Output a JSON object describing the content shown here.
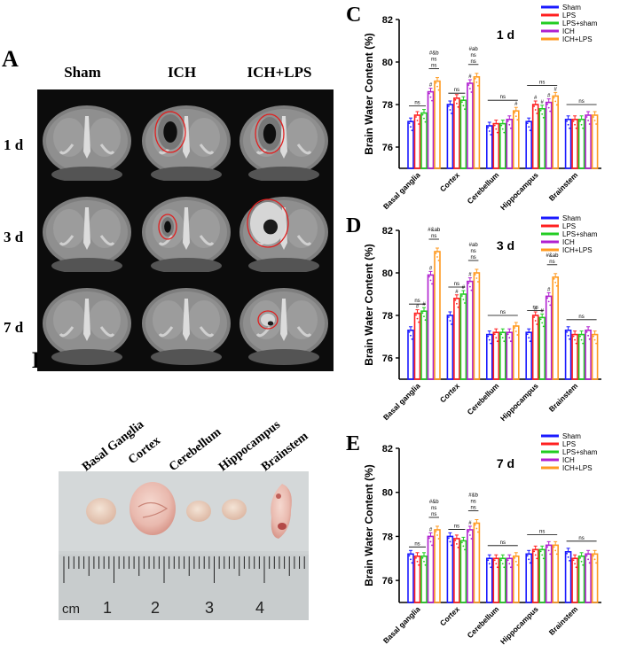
{
  "figure": {
    "panel_letters": [
      "A",
      "B",
      "C",
      "D",
      "E"
    ],
    "mri": {
      "columns": [
        "Sham",
        "ICH",
        "ICH+LPS"
      ],
      "rows": [
        "1 d",
        "3 d",
        "7 d"
      ]
    },
    "tissue": {
      "labels": [
        "Basal Ganglia",
        "Cortex",
        "Cerebellum",
        "Hippocampus",
        "Brainstem"
      ],
      "ruler_numbers": [
        "1",
        "2",
        "3",
        "4"
      ],
      "ruler_unit": "cm"
    }
  },
  "colors": {
    "Sham": "#1a1aff",
    "LPS": "#ff2020",
    "LPS+sham": "#22cc22",
    "ICH": "#b020d0",
    "ICH+LPS": "#ff9a20"
  },
  "chart_data": [
    {
      "type": "bar",
      "panel": "C",
      "title": "1 d",
      "ylabel": "Brain Water Content (%)",
      "ylim": [
        75,
        82
      ],
      "yticks": [
        76,
        78,
        80,
        82
      ],
      "categories": [
        "Basal ganglia",
        "Cortex",
        "Cerebellum",
        "Hippocampus",
        "Brainstem"
      ],
      "series": [
        {
          "name": "Sham",
          "values": [
            77.2,
            78.0,
            77.0,
            77.2,
            77.3
          ]
        },
        {
          "name": "LPS",
          "values": [
            77.5,
            78.3,
            77.1,
            78.0,
            77.3
          ]
        },
        {
          "name": "LPS+sham",
          "values": [
            77.6,
            78.2,
            77.1,
            77.8,
            77.3
          ]
        },
        {
          "name": "ICH",
          "values": [
            78.6,
            79.0,
            77.3,
            78.1,
            77.5
          ]
        },
        {
          "name": "ICH+LPS",
          "values": [
            79.1,
            79.3,
            77.7,
            78.4,
            77.5
          ]
        }
      ],
      "annotations": [
        {
          "category": 0,
          "series": [
            3,
            4
          ],
          "texts": [
            "ns",
            "#&b"
          ],
          "marks": [
            "",
            "",
            "",
            "#",
            ""
          ],
          "bracket_label": "ns"
        },
        {
          "category": 1,
          "series": [
            3,
            4
          ],
          "texts": [
            "ns",
            "#ab"
          ],
          "marks": [
            "",
            "",
            "",
            "#",
            ""
          ],
          "bracket_label": "ns"
        },
        {
          "category": 2,
          "series": [
            0,
            4
          ],
          "texts": [],
          "marks": [
            "",
            "",
            "",
            "",
            "#"
          ],
          "bracket_label": "ns"
        },
        {
          "category": 3,
          "series": [
            0,
            4
          ],
          "texts": [],
          "marks": [
            "",
            "#",
            "#",
            "#",
            "#"
          ],
          "bracket_label": "ns"
        },
        {
          "category": 4,
          "series": [
            0,
            4
          ],
          "texts": [],
          "marks": [
            "",
            "",
            "",
            "",
            ""
          ],
          "bracket_label": "ns"
        }
      ]
    },
    {
      "type": "bar",
      "panel": "D",
      "title": "3 d",
      "ylabel": "Brain Water Content (%)",
      "ylim": [
        75,
        82
      ],
      "yticks": [
        76,
        78,
        80,
        82
      ],
      "categories": [
        "Basal ganglia",
        "Cortex",
        "Cerebellum",
        "Hippocampus",
        "Brainstem"
      ],
      "series": [
        {
          "name": "Sham",
          "values": [
            77.3,
            78.0,
            77.1,
            77.2,
            77.3
          ]
        },
        {
          "name": "LPS",
          "values": [
            78.1,
            78.8,
            77.2,
            78.0,
            77.1
          ]
        },
        {
          "name": "LPS+sham",
          "values": [
            78.2,
            79.0,
            77.2,
            77.9,
            77.1
          ]
        },
        {
          "name": "ICH",
          "values": [
            79.9,
            79.6,
            77.2,
            78.9,
            77.3
          ]
        },
        {
          "name": "ICH+LPS",
          "values": [
            81.0,
            80.0,
            77.5,
            79.8,
            77.1
          ]
        }
      ],
      "annotations": [
        {
          "category": 0,
          "series": [
            3,
            4
          ],
          "texts": [
            "#&ab"
          ],
          "marks": [
            "",
            "#",
            "#",
            "#",
            ""
          ],
          "bracket_label": "ns"
        },
        {
          "category": 1,
          "series": [
            3,
            4
          ],
          "texts": [
            "ns",
            "#ab"
          ],
          "marks": [
            "",
            "#",
            "#",
            "#",
            ""
          ],
          "bracket_label": "ns"
        },
        {
          "category": 2,
          "series": [
            0,
            4
          ],
          "texts": [],
          "marks": [
            "",
            "",
            "",
            "",
            ""
          ],
          "bracket_label": "ns"
        },
        {
          "category": 3,
          "series": [
            3,
            4
          ],
          "texts": [
            "#&ab"
          ],
          "marks": [
            "",
            "#",
            "#",
            "#",
            ""
          ],
          "bracket_label": "ns"
        },
        {
          "category": 4,
          "series": [
            0,
            4
          ],
          "texts": [],
          "marks": [
            "",
            "",
            "",
            "",
            ""
          ],
          "bracket_label": "ns"
        }
      ]
    },
    {
      "type": "bar",
      "panel": "E",
      "title": "7 d",
      "ylabel": "Brain Water Content (%)",
      "ylim": [
        75,
        82
      ],
      "yticks": [
        76,
        78,
        80,
        82
      ],
      "categories": [
        "Basal ganglia",
        "Cortex",
        "Cerebellum",
        "Hippocampus",
        "Brainstem"
      ],
      "series": [
        {
          "name": "Sham",
          "values": [
            77.2,
            78.0,
            77.0,
            77.2,
            77.3
          ]
        },
        {
          "name": "LPS",
          "values": [
            77.1,
            77.9,
            77.0,
            77.4,
            77.0
          ]
        },
        {
          "name": "LPS+sham",
          "values": [
            77.1,
            77.8,
            77.0,
            77.4,
            77.1
          ]
        },
        {
          "name": "ICH",
          "values": [
            78.0,
            78.3,
            77.0,
            77.6,
            77.2
          ]
        },
        {
          "name": "ICH+LPS",
          "values": [
            78.3,
            78.6,
            77.1,
            77.6,
            77.2
          ]
        }
      ],
      "annotations": [
        {
          "category": 0,
          "series": [
            3,
            4
          ],
          "texts": [
            "ns",
            "#&b"
          ],
          "marks": [
            "",
            "",
            "",
            "#",
            ""
          ],
          "bracket_label": "ns"
        },
        {
          "category": 1,
          "series": [
            3,
            4
          ],
          "texts": [
            "ns",
            "#&b"
          ],
          "marks": [
            "",
            "",
            "",
            "#",
            ""
          ],
          "bracket_label": "ns"
        },
        {
          "category": 2,
          "series": [
            0,
            4
          ],
          "texts": [],
          "marks": [
            "",
            "",
            "",
            "",
            ""
          ],
          "bracket_label": "ns"
        },
        {
          "category": 3,
          "series": [
            0,
            4
          ],
          "texts": [],
          "marks": [
            "",
            "",
            "",
            "",
            ""
          ],
          "bracket_label": "ns"
        },
        {
          "category": 4,
          "series": [
            0,
            4
          ],
          "texts": [],
          "marks": [
            "",
            "",
            "",
            "",
            ""
          ],
          "bracket_label": "ns"
        }
      ]
    }
  ]
}
